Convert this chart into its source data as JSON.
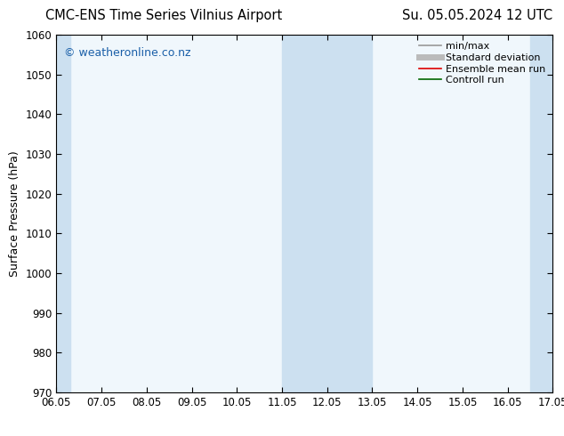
{
  "title_left": "CMC-ENS Time Series Vilnius Airport",
  "title_right": "Su. 05.05.2024 12 UTC",
  "ylabel": "Surface Pressure (hPa)",
  "watermark": "© weatheronline.co.nz",
  "ylim": [
    970,
    1060
  ],
  "yticks": [
    970,
    980,
    990,
    1000,
    1010,
    1020,
    1030,
    1040,
    1050,
    1060
  ],
  "xtick_labels": [
    "06.05",
    "07.05",
    "08.05",
    "09.05",
    "10.05",
    "11.05",
    "12.05",
    "13.05",
    "14.05",
    "15.05",
    "16.05",
    "17.05"
  ],
  "xlim": [
    0,
    11
  ],
  "shaded_bands": [
    {
      "x_start": -0.1,
      "x_end": 0.3
    },
    {
      "x_start": 5.0,
      "x_end": 7.0
    },
    {
      "x_start": 10.5,
      "x_end": 11.1
    }
  ],
  "shade_color": "#cce0f0",
  "legend_entries": [
    {
      "label": "min/max",
      "color": "#999999",
      "lw": 1.2
    },
    {
      "label": "Standard deviation",
      "color": "#bbbbbb",
      "lw": 5
    },
    {
      "label": "Ensemble mean run",
      "color": "#dd0000",
      "lw": 1.2
    },
    {
      "label": "Controll run",
      "color": "#006600",
      "lw": 1.2
    }
  ],
  "bg_color": "#ffffff",
  "plot_bg_color": "#f0f7fc",
  "watermark_color": "#1a5fa8",
  "title_fontsize": 10.5,
  "label_fontsize": 9,
  "tick_fontsize": 8.5,
  "watermark_fontsize": 9,
  "legend_fontsize": 8
}
